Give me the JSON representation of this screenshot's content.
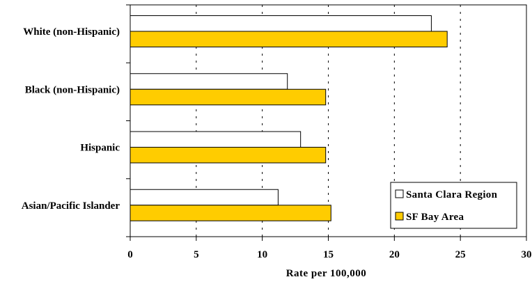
{
  "chart_data": {
    "type": "bar",
    "orientation": "horizontal",
    "categories": [
      "White (non-Hispanic)",
      "Black (non-Hispanic)",
      "Hispanic",
      "Asian/Pacific Islander"
    ],
    "series": [
      {
        "name": "Santa Clara Region",
        "values": [
          22.8,
          11.9,
          12.9,
          11.2
        ],
        "color": "#ffffff"
      },
      {
        "name": "SF Bay Area",
        "values": [
          24.0,
          14.8,
          14.8,
          15.2
        ],
        "color": "#ffcc00"
      }
    ],
    "x_ticks": [
      "0",
      "5",
      "10",
      "15",
      "20",
      "25",
      "30"
    ],
    "xlim": [
      0,
      30
    ],
    "xlabel": "Rate per 100,000",
    "ylabel": "",
    "title": "",
    "grid": "vertical dashed",
    "legend_position": "bottom-right"
  }
}
